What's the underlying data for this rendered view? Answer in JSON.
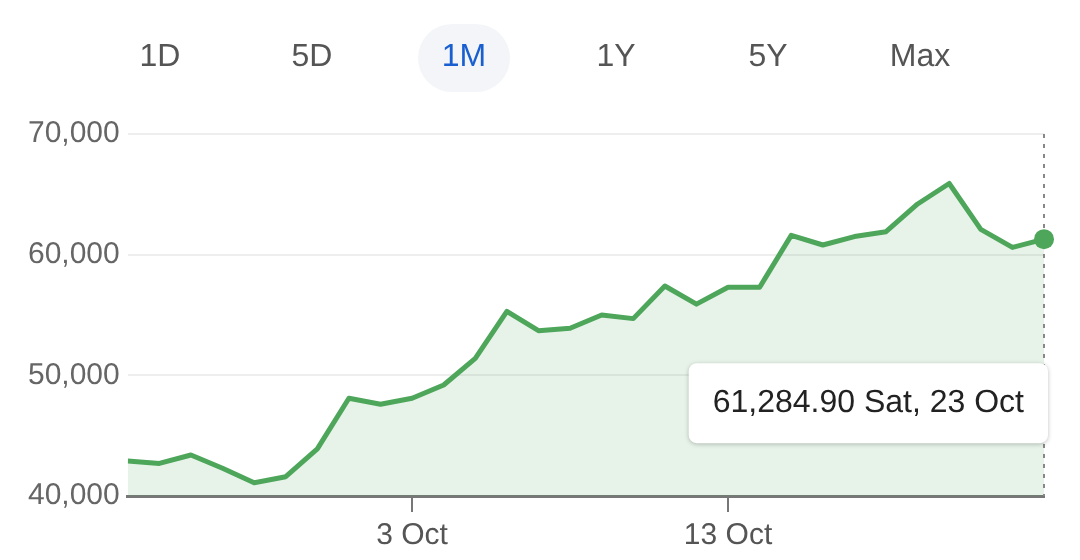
{
  "chart_data": {
    "type": "area",
    "x": [
      "--09-24",
      "--09-25",
      "--09-26",
      "--09-27",
      "--09-28",
      "--09-29",
      "--09-30",
      "--10-01",
      "--10-02",
      "--10-03",
      "--10-04",
      "--10-05",
      "--10-06",
      "--10-07",
      "--10-08",
      "--10-09",
      "--10-10",
      "--10-11",
      "--10-12",
      "--10-13",
      "--10-14",
      "--10-15",
      "--10-16",
      "--10-17",
      "--10-18",
      "--10-19",
      "--10-20",
      "--10-21",
      "--10-22",
      "--10-23"
    ],
    "series": [
      {
        "color": "#4ea65b",
        "values": [
          42900,
          42700,
          43400,
          42300,
          41100,
          41600,
          43900,
          48100,
          47600,
          48100,
          49200,
          51400,
          55300,
          53700,
          53900,
          55000,
          54700,
          57400,
          55900,
          57300,
          57300,
          61600,
          60800,
          61500,
          61900,
          64200,
          65900,
          62100,
          60600,
          61284.9
        ]
      }
    ],
    "xlim": [
      "--09-24",
      "--10-23"
    ],
    "xticks": [
      {
        "value": "--10-03",
        "label": "3 Oct"
      },
      {
        "value": "--10-13",
        "label": "13 Oct"
      }
    ],
    "ylim": [
      40000,
      70000
    ],
    "yticks": [
      {
        "value": 40000,
        "label": "40,000"
      },
      {
        "value": 50000,
        "label": "50,000"
      },
      {
        "value": 60000,
        "label": "60,000"
      },
      {
        "value": 70000,
        "label": "70,000"
      }
    ],
    "grid": "y",
    "marker": "none",
    "line_style": "solid",
    "legend": false,
    "ref_lines": [
      {
        "axis": "x",
        "value": "--10-23",
        "line_style": "dotted",
        "color": "#888888"
      }
    ],
    "annotations": [
      "1D",
      "5D",
      "1M",
      "1Y",
      "5Y",
      "Max",
      "61,284.90 Sat, 23 Oct"
    ]
  }
}
